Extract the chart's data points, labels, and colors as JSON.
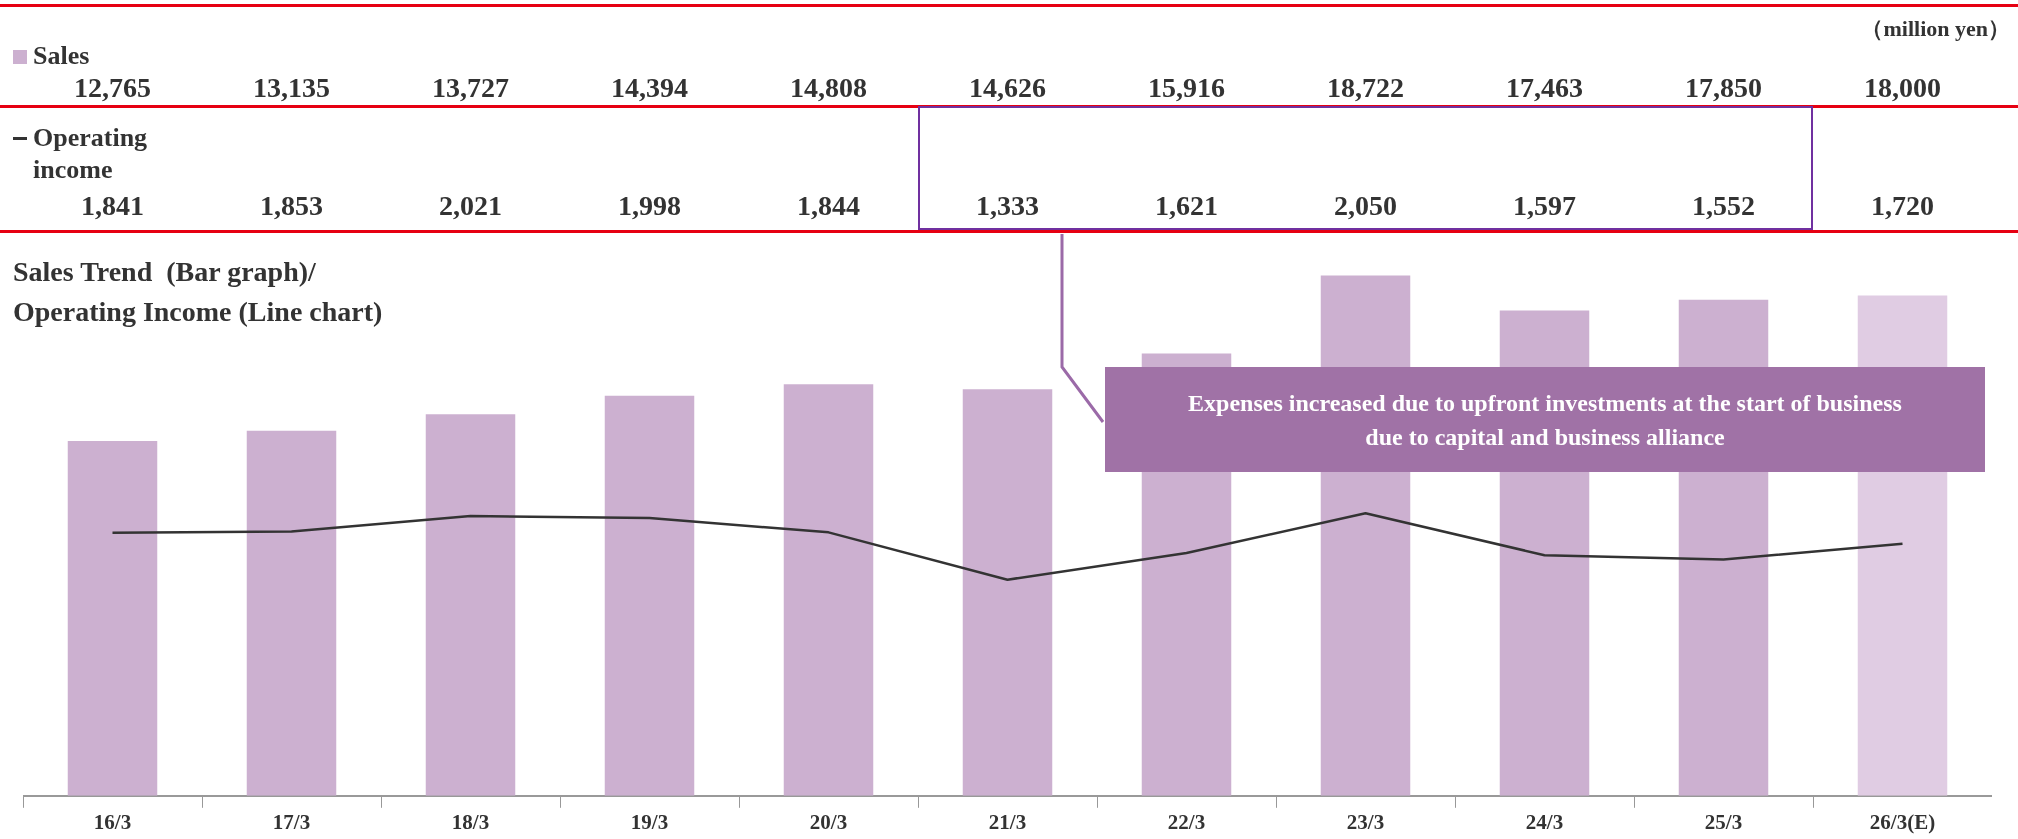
{
  "chart_data": {
    "type": "bar",
    "title": "Sales Trend  (Bar graph)/\nOperating Income (Line chart)",
    "categories": [
      "16/3",
      "17/3",
      "18/3",
      "19/3",
      "20/3",
      "21/3",
      "22/3",
      "23/3",
      "24/3",
      "25/3",
      "26/3(E)"
    ],
    "series": [
      {
        "name": "Sales",
        "colors": [
          "#ccb0d0",
          "#ccb0d0",
          "#ccb0d0",
          "#ccb0d0",
          "#ccb0d0",
          "#ccb0d0",
          "#ccb0d0",
          "#ccb0d0",
          "#ccb0d0",
          "#ccb0d0",
          "#e0cce3"
        ],
        "values": [
          12765,
          13135,
          13727,
          14394,
          14808,
          14626,
          15916,
          18722,
          17463,
          17850,
          18000
        ],
        "value_labels": [
          "12,765",
          "13,135",
          "13,727",
          "14,394",
          "14,808",
          "14,626",
          "15,916",
          "18,722",
          "17,463",
          "17,850",
          "18,000"
        ]
      },
      {
        "name": "Operating\nincome",
        "type": "line",
        "axis": "y2",
        "color": "#333333",
        "values": [
          1841,
          1853,
          2021,
          1998,
          1844,
          1333,
          1621,
          2050,
          1597,
          1552,
          1720
        ],
        "value_labels": [
          "1,841",
          "1,853",
          "2,021",
          "1,998",
          "1,844",
          "1,333",
          "1,621",
          "2,050",
          "1,597",
          "1,552",
          "1,720"
        ]
      }
    ],
    "marker": "none",
    "legend": "top left",
    "annotations": [
      "（million yen）",
      "Expenses increased due to upfront investments at the start of business due to capital and business alliance"
    ]
  }
}
